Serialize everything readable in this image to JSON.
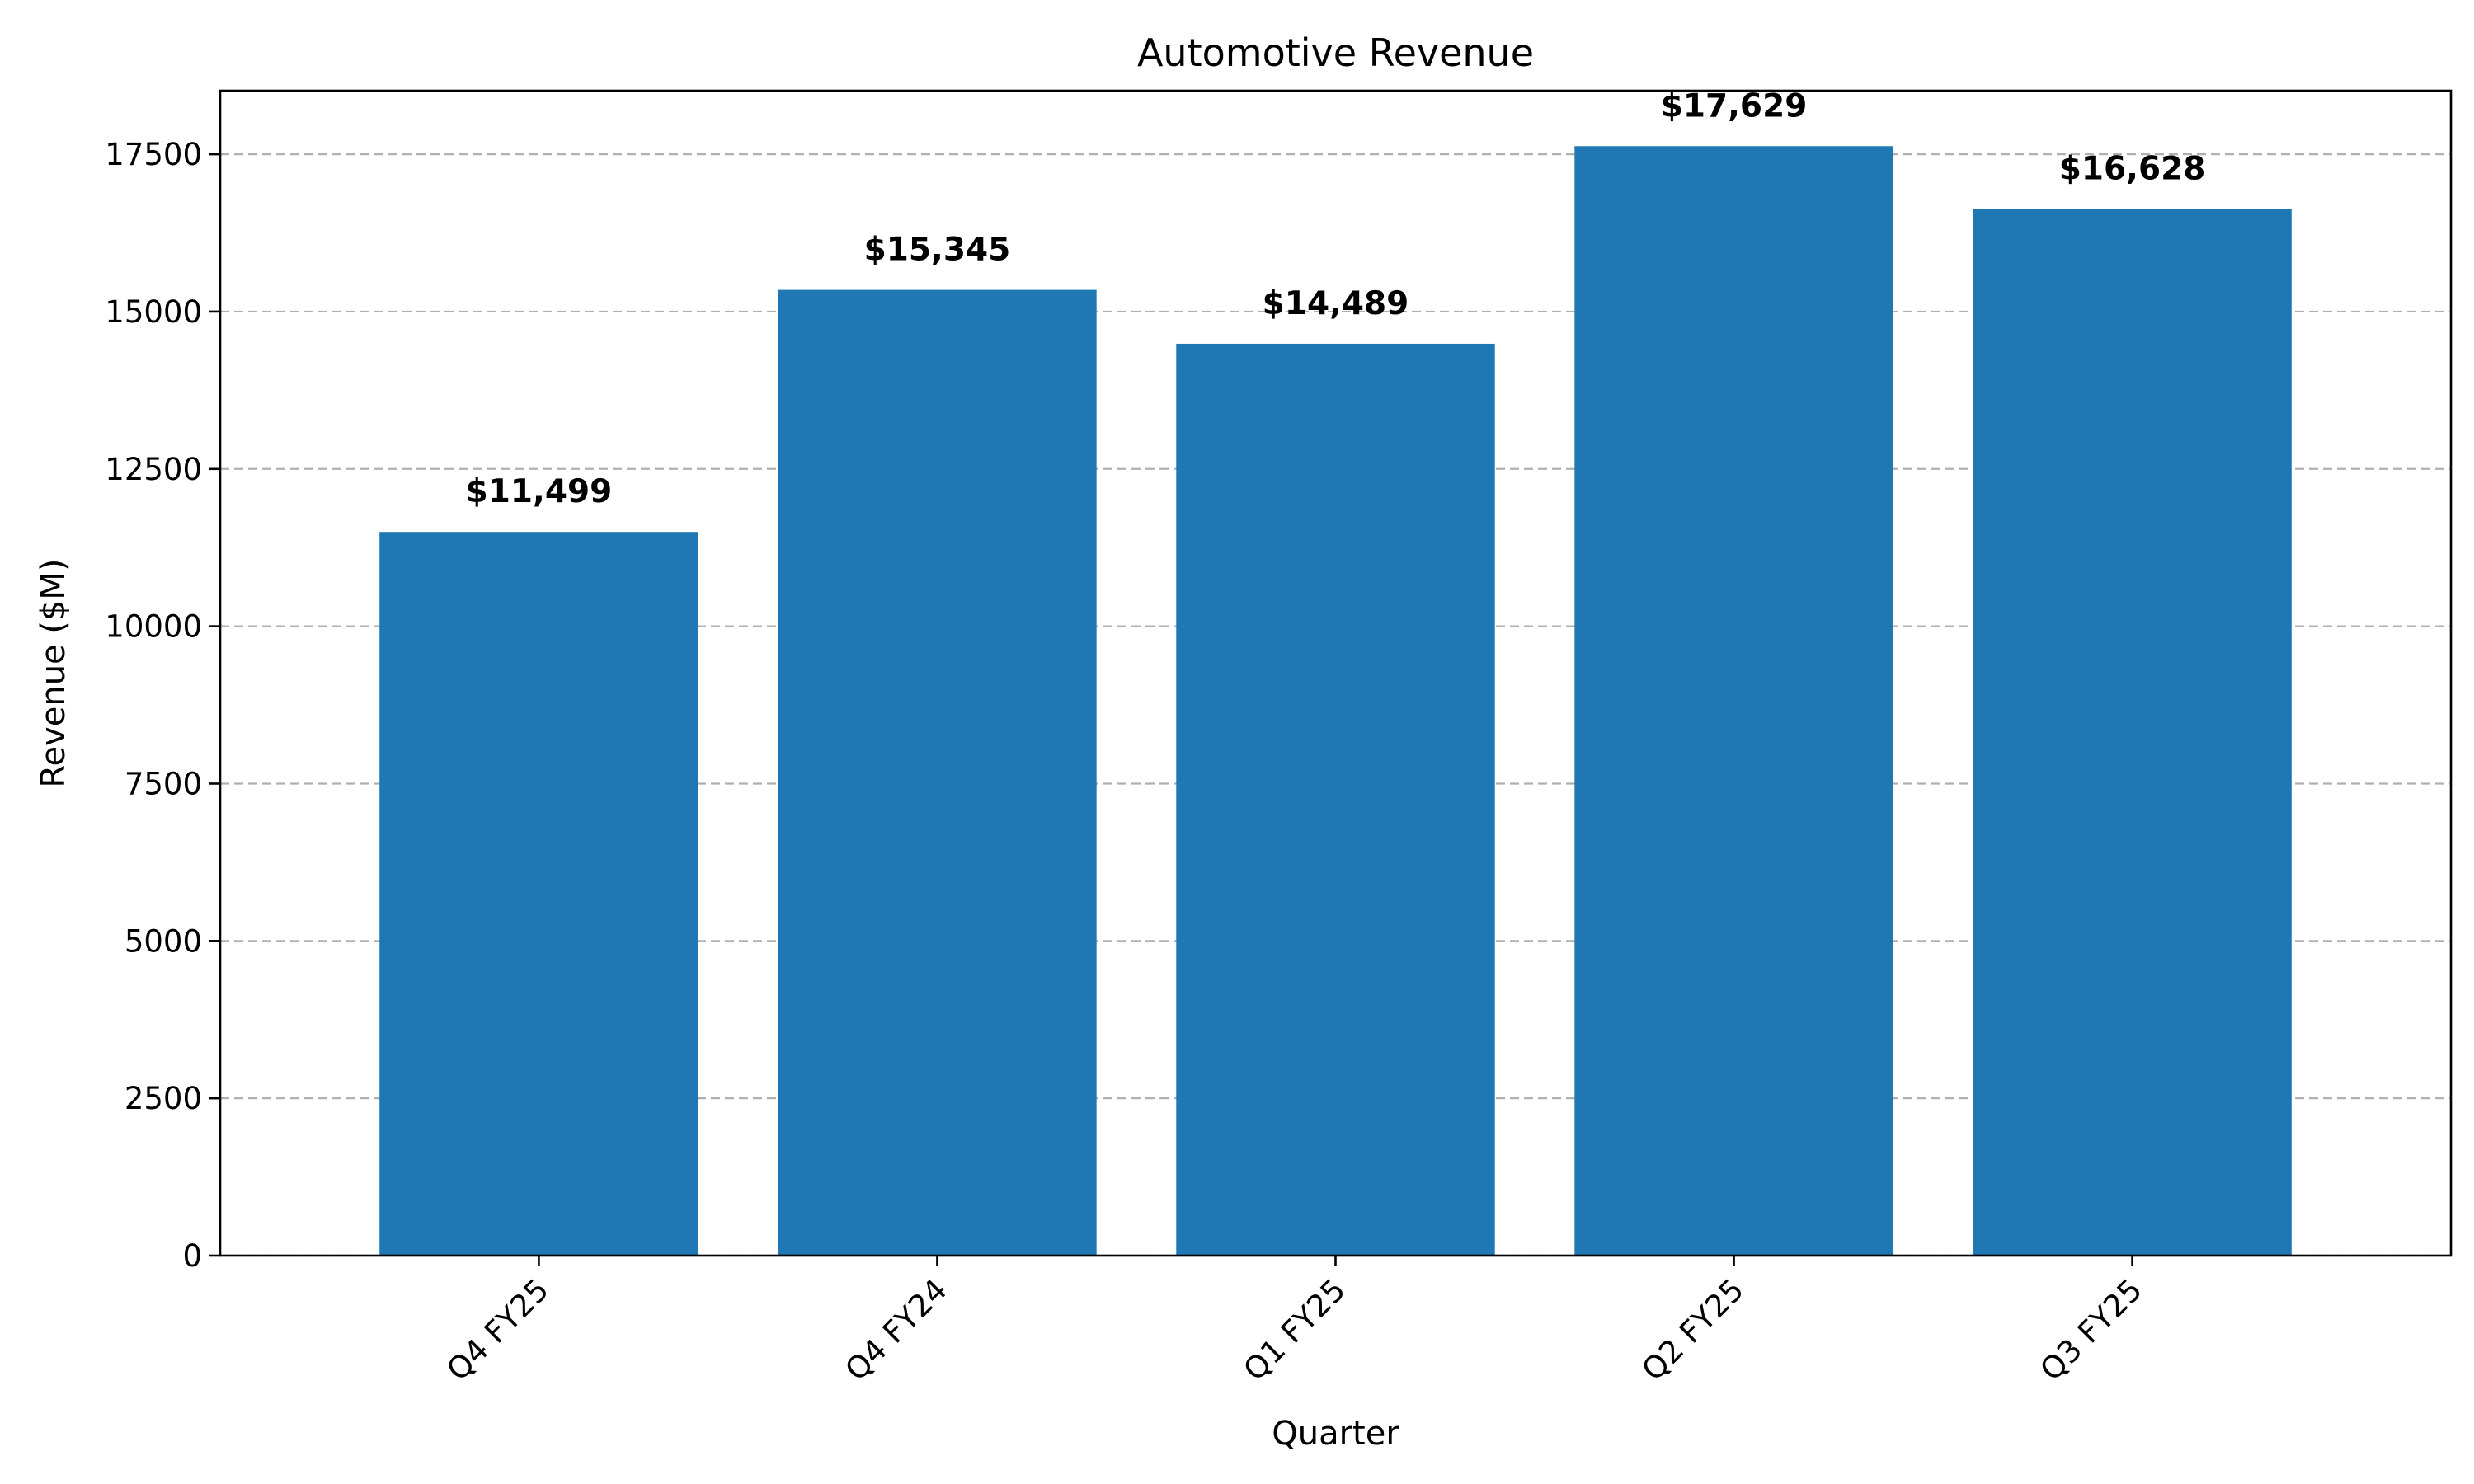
{
  "chart_data": {
    "type": "bar",
    "title": "Automotive Revenue",
    "xlabel": "Quarter",
    "ylabel": "Revenue ($M)",
    "categories": [
      "Q4 FY25",
      "Q4 FY24",
      "Q1 FY25",
      "Q2 FY25",
      "Q3 FY25"
    ],
    "values": [
      11499,
      15345,
      14489,
      17629,
      16628
    ],
    "data_labels": [
      "$11,499",
      "$15,345",
      "$14,489",
      "$17,629",
      "$16,628"
    ],
    "yticks": [
      0,
      2500,
      5000,
      7500,
      10000,
      12500,
      15000,
      17500
    ],
    "ytick_labels": [
      "0",
      "2500",
      "5000",
      "7500",
      "10000",
      "12500",
      "15000",
      "17500"
    ],
    "ylim": [
      0,
      18510
    ],
    "grid": "y-dashed",
    "legend": "none",
    "bar_color": "#1f77b4",
    "grid_color": "#b0b0b0"
  }
}
